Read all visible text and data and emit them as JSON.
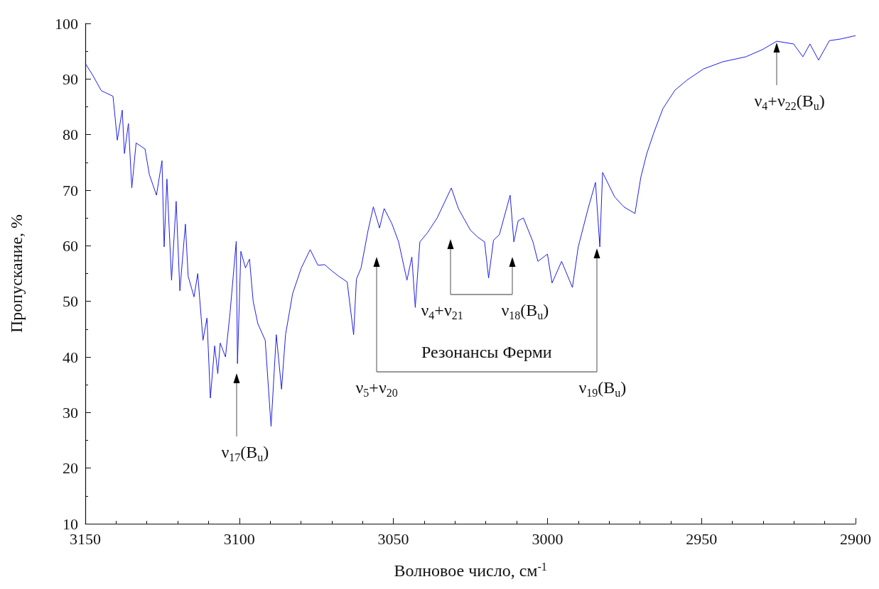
{
  "chart_data": {
    "type": "line",
    "xlabel": "Волновое число, см$^{-1}$",
    "ylabel": "Пропускание, %",
    "color": "#1f1fe8",
    "xlim": [
      3150,
      2900
    ],
    "xticks": [
      3150,
      3100,
      3050,
      3000,
      2950,
      2900
    ],
    "ylim": [
      10,
      100
    ],
    "yticks": [
      10,
      20,
      30,
      40,
      50,
      60,
      70,
      80,
      90,
      100
    ],
    "x": [
      3150,
      3147.7,
      3144.8,
      3141,
      3139.6,
      3138,
      3137.3,
      3136,
      3134.9,
      3133.5,
      3130.6,
      3129.2,
      3126.9,
      3125.1,
      3124.4,
      3123.5,
      3122,
      3120.5,
      3119.3,
      3117.5,
      3116.6,
      3114.7,
      3113.5,
      3111.8,
      3110.5,
      3109.4,
      3108,
      3107,
      3106.2,
      3104.5,
      3103,
      3101,
      3100.6,
      3099.5,
      3098,
      3096.7,
      3095.5,
      3094,
      3091.6,
      3089.7,
      3088,
      3086.3,
      3085,
      3082.7,
      3079.9,
      3077,
      3074.5,
      3072.3,
      3070,
      3067.7,
      3065,
      3062.9,
      3062,
      3060.5,
      3058.2,
      3056.5,
      3054.5,
      3053,
      3050.5,
      3048.3,
      3045.6,
      3044,
      3042.9,
      3041.4,
      3039,
      3035.8,
      3031.2,
      3028.9,
      3025,
      3022.5,
      3020.4,
      3019.1,
      3017.5,
      3015.6,
      3012.1,
      3010.9,
      3009.5,
      3007.8,
      3004.7,
      3003.1,
      3000,
      2998.5,
      2995.4,
      2991.9,
      2990,
      2986.8,
      2984.4,
      2983,
      2982.1,
      2978.2,
      2975.2,
      2971.6,
      2969.7,
      2967.8,
      2965.5,
      2962.5,
      2958.6,
      2954.7,
      2949.4,
      2943.1,
      2935.6,
      2930.2,
      2925.6,
      2920.1,
      2917.1,
      2914.8,
      2912,
      2908.5,
      2904.8,
      2900
    ],
    "values": [
      92.8,
      90.8,
      87.9,
      86.9,
      79,
      84.4,
      76.6,
      82,
      70.4,
      78.5,
      77.4,
      72.8,
      69.1,
      75.3,
      59.8,
      72,
      53.8,
      68,
      51.9,
      63.9,
      54.5,
      50.8,
      55,
      43,
      47,
      32.6,
      42,
      37,
      42.5,
      40,
      48,
      60.8,
      38.8,
      59,
      56,
      57.6,
      50,
      46,
      43,
      27.5,
      44,
      34.2,
      44,
      51.4,
      56,
      59.3,
      56.5,
      56.6,
      55.5,
      54.5,
      53.5,
      44,
      54,
      56,
      62.8,
      67,
      63.2,
      66.7,
      64,
      60.7,
      53.8,
      58,
      48.9,
      60.7,
      62.3,
      65,
      70.4,
      66.7,
      62.8,
      61.5,
      60.7,
      54.2,
      61,
      62,
      69.1,
      60.7,
      64.5,
      65,
      60.7,
      57.2,
      58.5,
      53.3,
      57.2,
      52.5,
      59.8,
      66.7,
      71.4,
      59.8,
      73.2,
      68.8,
      67,
      65.8,
      72.3,
      76.5,
      80.3,
      84.7,
      88,
      89.8,
      91.8,
      93.1,
      94,
      95.3,
      96.8,
      96.3,
      94,
      96.3,
      93.4,
      96.9,
      97.2,
      97.8
    ],
    "annotations": [
      "ν$_{17}$(B$_{u}$)",
      "ν$_{5}$+ν$_{20}$",
      "ν$_{4}$+ν$_{21}$",
      "ν$_{18}$(B$_{u}$)",
      "ν$_{19}$(B$_{u}$)",
      "ν$_{4}$+ν$_{22}$(B$_{u}$)",
      "Резонансы Ферми"
    ]
  }
}
